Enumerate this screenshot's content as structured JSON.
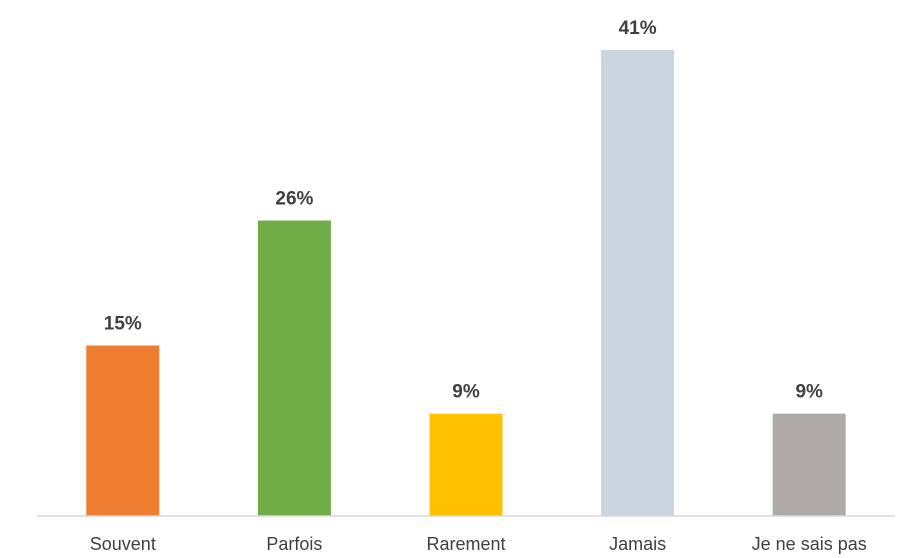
{
  "chart_data": {
    "type": "bar",
    "categories": [
      "Souvent",
      "Parfois",
      "Rarement",
      "Jamais",
      "Je ne sais pas"
    ],
    "values": [
      15,
      26,
      9,
      41,
      9
    ],
    "value_labels": [
      "15%",
      "26%",
      "9%",
      "41%",
      "9%"
    ],
    "colors": [
      "#ED7D31",
      "#70AD47",
      "#FFC000",
      "#CBD5E0",
      "#AEAAAA"
    ],
    "title": "",
    "xlabel": "",
    "ylabel": "",
    "ylim": [
      0,
      41
    ],
    "grid": false,
    "legend": "none"
  }
}
